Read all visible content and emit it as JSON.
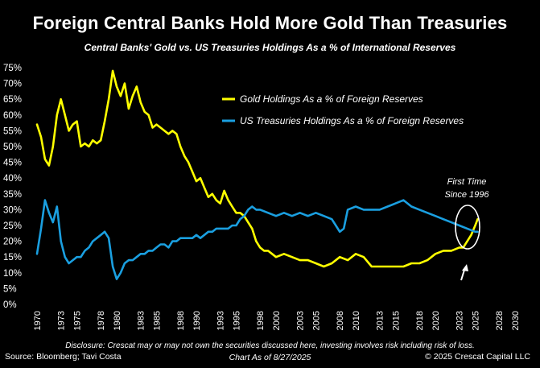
{
  "title": "Foreign Central Banks Hold More Gold Than Treasuries",
  "subtitle": "Central Banks' Gold vs. US Treasuries Holdings As a % of International Reserves",
  "disclaimer": "Disclosure: Crescat may or may not own the securities discussed here, investing involves risk including risk of loss.",
  "source": "Source: Bloomberg; Tavi Costa",
  "chart_date": "Chart As of 8/27/2025",
  "copyright": "© 2025 Crescat Capital LLC",
  "annotation": {
    "line1": "First Time",
    "line2": "Since 1996"
  },
  "colors": {
    "gold": "#ffff00",
    "treasuries": "#1a9fe0",
    "background": "#000000",
    "text": "#ffffff"
  },
  "chart_data": {
    "type": "line",
    "xlim": [
      1970,
      2030
    ],
    "ylim": [
      0,
      75
    ],
    "x_ticks": [
      "1970",
      "1973",
      "1975",
      "1978",
      "1980",
      "1983",
      "1985",
      "1988",
      "1990",
      "1993",
      "1995",
      "1998",
      "2000",
      "2003",
      "2005",
      "2008",
      "2010",
      "2013",
      "2015",
      "2018",
      "2020",
      "2023",
      "2025",
      "2028",
      "2030"
    ],
    "y_ticks": [
      "0%",
      "5%",
      "10%",
      "15%",
      "20%",
      "25%",
      "30%",
      "35%",
      "40%",
      "45%",
      "50%",
      "55%",
      "60%",
      "65%",
      "70%",
      "75%"
    ],
    "legend_position": "top-right",
    "series": [
      {
        "name": "Gold Holdings As a % of Foreign Reserves",
        "color": "#ffff00",
        "x": [
          1970,
          1970.5,
          1971,
          1971.5,
          1972,
          1972.5,
          1973,
          1973.5,
          1974,
          1974.5,
          1975,
          1975.5,
          1976,
          1976.5,
          1977,
          1977.5,
          1978,
          1978.5,
          1979,
          1979.5,
          1980,
          1980.5,
          1981,
          1981.5,
          1982,
          1982.5,
          1983,
          1983.5,
          1984,
          1984.5,
          1985,
          1985.5,
          1986,
          1986.5,
          1987,
          1987.5,
          1988,
          1988.5,
          1989,
          1989.5,
          1990,
          1990.5,
          1991,
          1991.5,
          1992,
          1992.5,
          1993,
          1993.5,
          1994,
          1994.5,
          1995,
          1995.5,
          1996,
          1996.5,
          1997,
          1997.5,
          1998,
          1998.5,
          1999,
          1999.5,
          2000,
          2001,
          2002,
          2003,
          2004,
          2005,
          2006,
          2007,
          2008,
          2009,
          2010,
          2011,
          2012,
          2013,
          2014,
          2015,
          2016,
          2017,
          2018,
          2019,
          2020,
          2021,
          2022,
          2023,
          2023.5,
          2024,
          2024.5,
          2025,
          2025.3
        ],
        "values": [
          57,
          53,
          46,
          44,
          50,
          60,
          65,
          60,
          55,
          57,
          58,
          50,
          51,
          50,
          52,
          51,
          52,
          58,
          65,
          74,
          69,
          66,
          70,
          62,
          66,
          69,
          64,
          61,
          60,
          56,
          57,
          56,
          55,
          54,
          55,
          54,
          50,
          47,
          45,
          42,
          39,
          40,
          37,
          34,
          35,
          33,
          32,
          36,
          33,
          31,
          29,
          29,
          28,
          26,
          24,
          20,
          18,
          17,
          17,
          16,
          15,
          16,
          15,
          14,
          14,
          13,
          12,
          13,
          15,
          14,
          16,
          15,
          12,
          12,
          12,
          12,
          12,
          13,
          13,
          14,
          16,
          17,
          17,
          18,
          18,
          20,
          22,
          25,
          27
        ]
      },
      {
        "name": "US Treasuries Holdings As a % of Foreign Reserves",
        "color": "#1a9fe0",
        "x": [
          1970,
          1970.5,
          1971,
          1971.5,
          1972,
          1972.5,
          1973,
          1973.5,
          1974,
          1974.5,
          1975,
          1975.5,
          1976,
          1976.5,
          1977,
          1977.5,
          1978,
          1978.5,
          1979,
          1979.5,
          1980,
          1980.5,
          1981,
          1981.5,
          1982,
          1982.5,
          1983,
          1983.5,
          1984,
          1984.5,
          1985,
          1985.5,
          1986,
          1986.5,
          1987,
          1987.5,
          1988,
          1988.5,
          1989,
          1989.5,
          1990,
          1990.5,
          1991,
          1991.5,
          1992,
          1992.5,
          1993,
          1993.5,
          1994,
          1994.5,
          1995,
          1995.5,
          1996,
          1996.5,
          1997,
          1997.5,
          1998,
          1999,
          2000,
          2001,
          2002,
          2003,
          2004,
          2005,
          2006,
          2007,
          2007.5,
          2008,
          2008.5,
          2009,
          2010,
          2011,
          2012,
          2013,
          2014,
          2015,
          2016,
          2017,
          2018,
          2019,
          2020,
          2021,
          2022,
          2023,
          2024,
          2025,
          2025.3
        ],
        "values": [
          16,
          24,
          33,
          29,
          26,
          31,
          20,
          15,
          13,
          14,
          15,
          15,
          17,
          18,
          20,
          21,
          22,
          23,
          21,
          12,
          8,
          10,
          13,
          14,
          14,
          15,
          16,
          16,
          17,
          17,
          18,
          19,
          19,
          18,
          20,
          20,
          21,
          21,
          21,
          21,
          22,
          21,
          22,
          23,
          23,
          24,
          24,
          24,
          24,
          25,
          25,
          27,
          28,
          30,
          31,
          30,
          30,
          29,
          28,
          29,
          28,
          29,
          28,
          29,
          28,
          27,
          25,
          23,
          24,
          30,
          31,
          30,
          30,
          30,
          31,
          32,
          33,
          31,
          30,
          29,
          28,
          27,
          26,
          25,
          24,
          23,
          23
        ]
      }
    ]
  }
}
